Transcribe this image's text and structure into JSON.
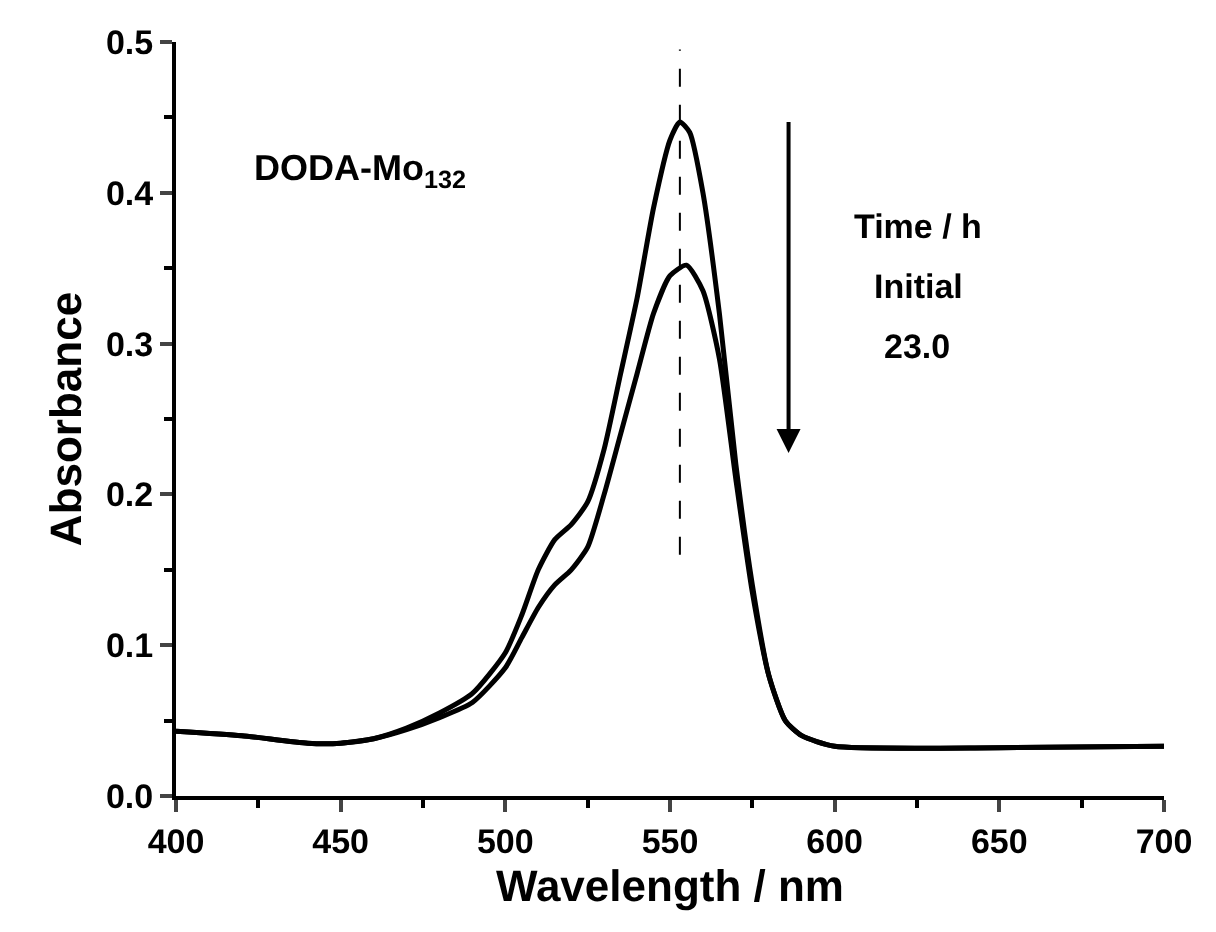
{
  "chart_data": {
    "type": "line",
    "xlabel": "Wavelength / nm",
    "ylabel": "Absorbance",
    "xlim": [
      400,
      700
    ],
    "ylim": [
      0,
      0.5
    ],
    "xticks": [
      400,
      450,
      500,
      550,
      600,
      650,
      700
    ],
    "yticks": [
      {
        "value": 0,
        "label": "0.0"
      },
      0.1,
      0.2,
      0.3,
      0.4,
      0.5
    ],
    "marker": "none",
    "line_style": "solid",
    "series": [
      {
        "color": "#000000",
        "x": [
          400,
          420,
          440,
          450,
          460,
          470,
          480,
          490,
          500,
          505,
          510,
          515,
          520,
          525,
          530,
          535,
          540,
          545,
          550,
          553,
          556,
          560,
          565,
          570,
          575,
          580,
          585,
          590,
          600,
          650,
          700
        ],
        "values": [
          0.043,
          0.04,
          0.035,
          0.035,
          0.038,
          0.045,
          0.055,
          0.068,
          0.095,
          0.12,
          0.15,
          0.17,
          0.18,
          0.195,
          0.23,
          0.28,
          0.33,
          0.39,
          0.435,
          0.447,
          0.44,
          0.4,
          0.32,
          0.22,
          0.14,
          0.08,
          0.05,
          0.04,
          0.033,
          0.032,
          0.033
        ]
      },
      {
        "color": "#000000",
        "x": [
          400,
          420,
          440,
          450,
          460,
          470,
          480,
          490,
          500,
          505,
          510,
          515,
          520,
          525,
          530,
          535,
          540,
          545,
          550,
          555,
          560,
          565,
          570,
          575,
          580,
          585,
          590,
          600,
          650,
          700
        ],
        "values": [
          0.043,
          0.04,
          0.035,
          0.035,
          0.038,
          0.044,
          0.052,
          0.062,
          0.085,
          0.105,
          0.125,
          0.14,
          0.15,
          0.165,
          0.2,
          0.24,
          0.28,
          0.32,
          0.345,
          0.352,
          0.335,
          0.29,
          0.21,
          0.135,
          0.08,
          0.05,
          0.04,
          0.033,
          0.032,
          0.033
        ]
      }
    ],
    "ref_lines": [
      {
        "axis": "x",
        "value": 553,
        "line_style": "dashed",
        "color": "#000000"
      }
    ],
    "annotations": [
      "DODA-Mo$_{132}$",
      "Time / h",
      "Initial",
      "23.0"
    ]
  }
}
